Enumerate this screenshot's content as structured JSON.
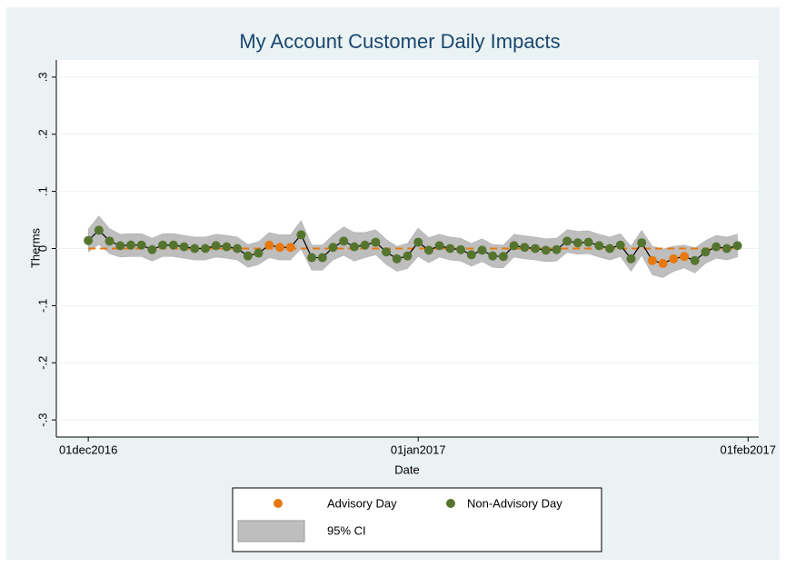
{
  "chart_data": {
    "type": "scatter",
    "title": "My Account Customer Daily Impacts",
    "xlabel": "Date",
    "ylabel": "Therms",
    "x": [
      "2016-12-01",
      "2016-12-02",
      "2016-12-03",
      "2016-12-04",
      "2016-12-05",
      "2016-12-06",
      "2016-12-07",
      "2016-12-08",
      "2016-12-09",
      "2016-12-10",
      "2016-12-11",
      "2016-12-12",
      "2016-12-13",
      "2016-12-14",
      "2016-12-15",
      "2016-12-16",
      "2016-12-17",
      "2016-12-18",
      "2016-12-19",
      "2016-12-20",
      "2016-12-21",
      "2016-12-22",
      "2016-12-23",
      "2016-12-24",
      "2016-12-25",
      "2016-12-26",
      "2016-12-27",
      "2016-12-28",
      "2016-12-29",
      "2016-12-30",
      "2016-12-31",
      "2017-01-01",
      "2017-01-02",
      "2017-01-03",
      "2017-01-04",
      "2017-01-05",
      "2017-01-06",
      "2017-01-07",
      "2017-01-08",
      "2017-01-09",
      "2017-01-10",
      "2017-01-11",
      "2017-01-12",
      "2017-01-13",
      "2017-01-14",
      "2017-01-15",
      "2017-01-16",
      "2017-01-17",
      "2017-01-18",
      "2017-01-19",
      "2017-01-20",
      "2017-01-21",
      "2017-01-22",
      "2017-01-23",
      "2017-01-24",
      "2017-01-25",
      "2017-01-26",
      "2017-01-27",
      "2017-01-28",
      "2017-01-29",
      "2017-01-30",
      "2017-01-31"
    ],
    "series": [
      {
        "name": "Advisory Day",
        "color": "#e8790f",
        "values": [
          null,
          null,
          null,
          null,
          null,
          null,
          null,
          null,
          null,
          null,
          null,
          null,
          null,
          null,
          null,
          null,
          null,
          0.006,
          0.002,
          0.002,
          null,
          null,
          null,
          null,
          null,
          null,
          null,
          null,
          null,
          null,
          null,
          null,
          null,
          null,
          null,
          null,
          null,
          null,
          null,
          null,
          null,
          null,
          null,
          null,
          null,
          null,
          null,
          null,
          null,
          null,
          null,
          null,
          null,
          -0.021,
          -0.026,
          -0.018,
          -0.014,
          null,
          null,
          null,
          null,
          null
        ]
      },
      {
        "name": "Non-Advisory Day",
        "color": "#55752f",
        "values": [
          0.014,
          0.032,
          0.013,
          0.005,
          0.006,
          0.006,
          -0.002,
          0.006,
          0.006,
          0.003,
          0,
          0,
          0.005,
          0.003,
          0,
          -0.013,
          -0.008,
          null,
          null,
          null,
          0.024,
          -0.016,
          -0.016,
          0.002,
          0.013,
          0.003,
          0.006,
          0.011,
          -0.006,
          -0.018,
          -0.013,
          0.011,
          -0.003,
          0.005,
          0,
          -0.002,
          -0.011,
          -0.003,
          -0.013,
          -0.014,
          0.005,
          0.002,
          0,
          -0.003,
          -0.002,
          0.013,
          0.01,
          0.011,
          0.005,
          0,
          0.006,
          -0.018,
          0.01,
          null,
          null,
          null,
          null,
          -0.021,
          -0.006,
          0.003,
          0,
          0.005
        ]
      }
    ],
    "ci": {
      "name": "95% CI",
      "color": "#bebebe",
      "half_width": [
        0.02,
        0.025,
        0.022,
        0.02,
        0.02,
        0.02,
        0.02,
        0.02,
        0.02,
        0.02,
        0.02,
        0.02,
        0.02,
        0.02,
        0.02,
        0.02,
        0.02,
        0.022,
        0.022,
        0.022,
        0.025,
        0.022,
        0.022,
        0.022,
        0.025,
        0.025,
        0.022,
        0.022,
        0.022,
        0.022,
        0.022,
        0.025,
        0.022,
        0.02,
        0.02,
        0.02,
        0.02,
        0.02,
        0.02,
        0.02,
        0.02,
        0.02,
        0.02,
        0.02,
        0.02,
        0.02,
        0.02,
        0.02,
        0.02,
        0.02,
        0.02,
        0.022,
        0.022,
        0.025,
        0.025,
        0.022,
        0.02,
        0.022,
        0.02,
        0.02,
        0.02,
        0.02
      ]
    },
    "refline": 0,
    "line_color": "#000000",
    "xlim": [
      "2016-11-28",
      "2017-02-02"
    ],
    "xticks": [
      {
        "value": "2016-12-01",
        "label": "01dec2016"
      },
      {
        "value": "2017-01-01",
        "label": "01jan2017"
      },
      {
        "value": "2017-02-01",
        "label": "01feb2017"
      }
    ],
    "ylim": [
      -0.33,
      0.33
    ],
    "yticks": [
      {
        "value": -0.3,
        "label": "-.3"
      },
      {
        "value": -0.2,
        "label": "-.2"
      },
      {
        "value": -0.1,
        "label": "-.1"
      },
      0,
      {
        "value": 0.1,
        "label": ".1"
      },
      {
        "value": 0.2,
        "label": ".2"
      },
      {
        "value": 0.3,
        "label": ".3"
      }
    ],
    "grid": true
  }
}
